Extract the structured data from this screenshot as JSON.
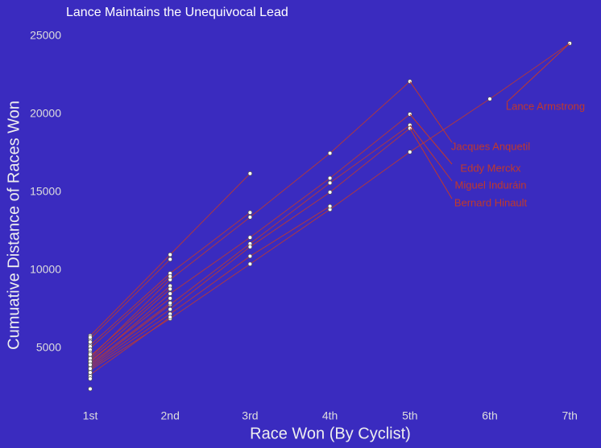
{
  "chart_data": {
    "type": "line",
    "title": "Lance Maintains the Unequivocal Lead",
    "x_label": "Race Won (By Cyclist)",
    "y_label": "Cumuative Distance of Races Won",
    "categories": [
      "1st",
      "2nd",
      "3rd",
      "4th",
      "5th",
      "6th",
      "7th"
    ],
    "ylim": [
      1500,
      26000
    ],
    "yticks": [
      5000,
      10000,
      15000,
      20000,
      25000
    ],
    "line_color": "#c0392b",
    "point_color": "#ffffff",
    "background": "#3a2bbf",
    "series": [
      {
        "name": "Lance Armstrong",
        "values": [
          3600,
          6900,
          10400,
          13900,
          17580,
          20980,
          24540
        ]
      },
      {
        "name": "Jacques Anquetil",
        "values": [
          4400,
          9400,
          13400,
          17500,
          22100,
          null,
          null
        ]
      },
      {
        "name": "Eddy Merckx",
        "values": [
          4100,
          8500,
          12100,
          15900,
          20000,
          null,
          null
        ]
      },
      {
        "name": "Miguel Induráin",
        "values": [
          3900,
          7800,
          11700,
          15600,
          19300,
          null,
          null
        ]
      },
      {
        "name": "Bernard Hinault",
        "values": [
          3800,
          7500,
          11500,
          15000,
          19100,
          null,
          null
        ]
      },
      {
        "values": [
          3700,
          7200,
          10900,
          14100,
          null,
          null,
          null
        ]
      },
      {
        "values": [
          5800,
          11000,
          16200,
          null,
          null,
          null,
          null
        ]
      },
      {
        "values": [
          5200,
          9800,
          13700,
          null,
          null,
          null,
          null
        ]
      },
      {
        "values": [
          5600,
          10700,
          null,
          null,
          null,
          null,
          null
        ]
      },
      {
        "values": [
          5000,
          9600,
          null,
          null,
          null,
          null,
          null
        ]
      },
      {
        "values": [
          4500,
          9000,
          null,
          null,
          null,
          null,
          null
        ]
      },
      {
        "values": [
          4300,
          8800,
          null,
          null,
          null,
          null,
          null
        ]
      },
      {
        "values": [
          4200,
          8200,
          null,
          null,
          null,
          null,
          null
        ]
      },
      {
        "values": [
          4000,
          7900,
          null,
          null,
          null,
          null,
          null
        ]
      },
      {
        "values": [
          3300,
          7000,
          null,
          null,
          null,
          null,
          null
        ]
      },
      {
        "values": [
          5700,
          null,
          null,
          null,
          null,
          null,
          null
        ]
      },
      {
        "values": [
          5400,
          null,
          null,
          null,
          null,
          null,
          null
        ]
      },
      {
        "values": [
          5100,
          null,
          null,
          null,
          null,
          null,
          null
        ]
      },
      {
        "values": [
          4900,
          null,
          null,
          null,
          null,
          null,
          null
        ]
      },
      {
        "values": [
          4700,
          null,
          null,
          null,
          null,
          null,
          null
        ]
      },
      {
        "values": [
          4600,
          null,
          null,
          null,
          null,
          null,
          null
        ]
      },
      {
        "values": [
          4350,
          null,
          null,
          null,
          null,
          null,
          null
        ]
      },
      {
        "values": [
          4150,
          null,
          null,
          null,
          null,
          null,
          null
        ]
      },
      {
        "values": [
          3950,
          null,
          null,
          null,
          null,
          null,
          null
        ]
      },
      {
        "values": [
          3450,
          null,
          null,
          null,
          null,
          null,
          null
        ]
      },
      {
        "values": [
          3200,
          null,
          null,
          null,
          null,
          null,
          null
        ]
      },
      {
        "values": [
          3050,
          null,
          null,
          null,
          null,
          null,
          null
        ]
      },
      {
        "values": [
          2400,
          null,
          null,
          null,
          null,
          null,
          null
        ]
      }
    ]
  }
}
